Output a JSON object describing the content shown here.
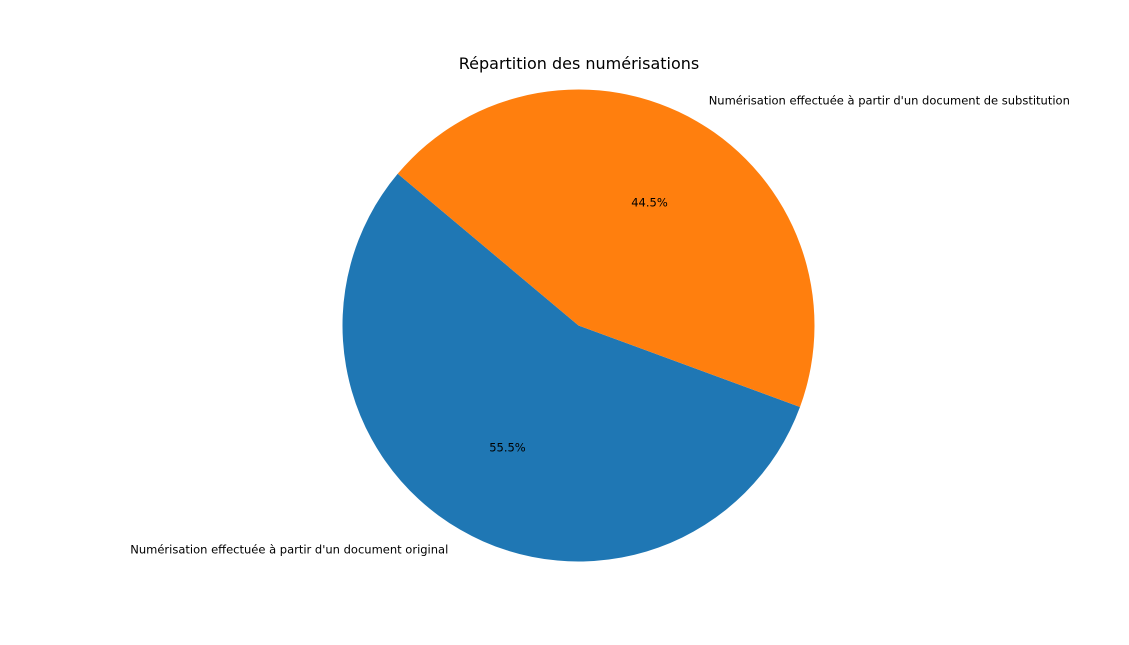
{
  "chart_data": {
    "type": "pie",
    "title": "Répartition des numérisations",
    "slices": [
      {
        "label": "Numérisation effectuée à partir d'un document original",
        "value": 55.5,
        "pct_label": "55.5%",
        "color": "#1f77b4"
      },
      {
        "label": "Numérisation effectuée à partir d'un document de substitution",
        "value": 44.5,
        "pct_label": "44.5%",
        "color": "#ff7f0e"
      }
    ],
    "start_angle_deg": 140,
    "direction": "counterclockwise",
    "legend": "none"
  }
}
